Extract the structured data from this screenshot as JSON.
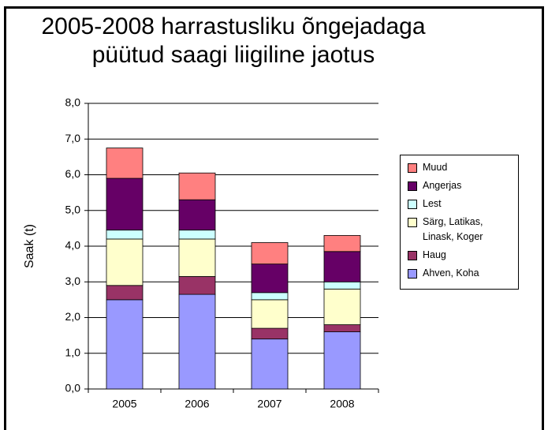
{
  "chart_data": {
    "type": "stacked_bar",
    "title": "2005-2008 harrastusliku õngejadaga püütud saagi liigiline jaotus",
    "y_label": "Saak (t)",
    "categories": [
      "2005",
      "2006",
      "2007",
      "2008"
    ],
    "series": [
      {
        "name": "Ahven, Koha",
        "color": "#9999ff",
        "values": [
          2.5,
          2.65,
          1.4,
          1.6
        ]
      },
      {
        "name": "Haug",
        "color": "#993366",
        "values": [
          0.4,
          0.5,
          0.3,
          0.2
        ]
      },
      {
        "name": "Särg, Latikas, Linask, Koger",
        "color": "#ffffcc",
        "values": [
          1.3,
          1.05,
          0.8,
          1.0
        ]
      },
      {
        "name": "Lest",
        "color": "#ccffff",
        "values": [
          0.25,
          0.25,
          0.2,
          0.2
        ]
      },
      {
        "name": "Angerjas",
        "color": "#660066",
        "values": [
          1.45,
          0.85,
          0.8,
          0.85
        ]
      },
      {
        "name": "Muud",
        "color": "#ff8080",
        "values": [
          0.85,
          0.75,
          0.6,
          0.45
        ]
      }
    ],
    "ylim": [
      0,
      8
    ],
    "yticks": [
      {
        "value": 0,
        "label": "0,0"
      },
      {
        "value": 1,
        "label": "1,0"
      },
      {
        "value": 2,
        "label": "2,0"
      },
      {
        "value": 3,
        "label": "3,0"
      },
      {
        "value": 4,
        "label": "4,0"
      },
      {
        "value": 5,
        "label": "5,0"
      },
      {
        "value": 6,
        "label": "6,0"
      },
      {
        "value": 7,
        "label": "7,0"
      },
      {
        "value": 8,
        "label": "8,0"
      }
    ],
    "grid": true,
    "legend": "right"
  }
}
